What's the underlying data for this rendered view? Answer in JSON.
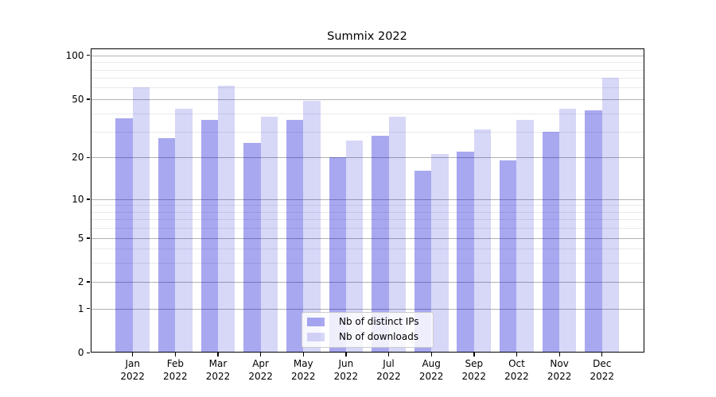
{
  "chart_data": {
    "type": "bar",
    "title": "Summix 2022",
    "categories": [
      "Jan",
      "Feb",
      "Mar",
      "Apr",
      "May",
      "Jun",
      "Jul",
      "Aug",
      "Sep",
      "Oct",
      "Nov",
      "Dec"
    ],
    "category_year": "2022",
    "series": [
      {
        "name": "Nb of distinct IPs",
        "color": "rgba(0,0,210,0.34)",
        "color_hex_on_white": "#aaaaf0",
        "values": [
          37,
          27,
          36,
          25,
          36,
          20,
          28,
          16,
          22,
          19,
          30,
          42
        ]
      },
      {
        "name": "Nb of downloads",
        "color": "rgba(0,0,210,0.155)",
        "color_hex_on_white": "#d8d8f8",
        "values": [
          60,
          43,
          62,
          38,
          49,
          26,
          38,
          21,
          31,
          36,
          43,
          70
        ]
      }
    ],
    "yscale": "symlog",
    "yticks": [
      0,
      1,
      2,
      5,
      10,
      20,
      50,
      100
    ],
    "yminorticks": [
      3,
      4,
      6,
      7,
      8,
      9,
      30,
      40,
      60,
      70,
      80,
      90
    ],
    "ylim": [
      0,
      110
    ],
    "xlabel": "",
    "ylabel": "",
    "grid": true,
    "legend_position": "lower center"
  }
}
